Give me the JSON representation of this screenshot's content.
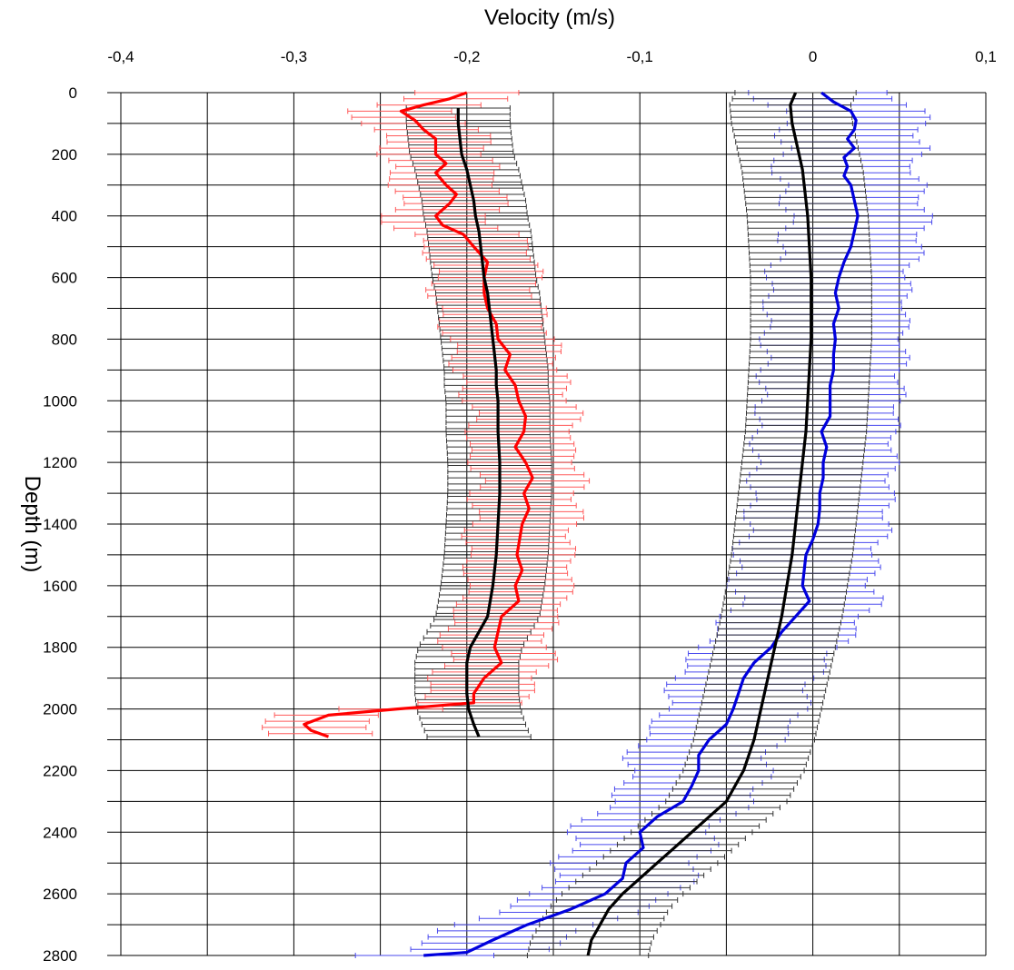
{
  "chart_data": {
    "type": "line",
    "xlabel": "Velocity (m/s)",
    "ylabel": "Depth (m)",
    "xlim": [
      -0.4,
      0.1
    ],
    "ylim": [
      0,
      2800
    ],
    "y_inverted": true,
    "x_ticks": [
      "-0,4",
      "-0,3",
      "-0,2",
      "-0,1",
      "0",
      "0,1"
    ],
    "x_tick_values": [
      -0.4,
      -0.3,
      -0.2,
      -0.1,
      0,
      0.1
    ],
    "y_ticks": [
      "0",
      "200",
      "400",
      "600",
      "800",
      "1000",
      "1200",
      "1400",
      "1600",
      "1800",
      "2000",
      "2200",
      "2400",
      "2600",
      "2800"
    ],
    "y_tick_values": [
      0,
      200,
      400,
      600,
      800,
      1000,
      1200,
      1400,
      1600,
      1800,
      2000,
      2200,
      2400,
      2600,
      2800
    ],
    "grid": true,
    "colors": {
      "red": "#ff0000",
      "red_bars": "#ff5a5a",
      "blue": "#0000dd",
      "blue_bars": "#4a4aee",
      "black": "#000000",
      "black_bars": "#333333"
    },
    "series": [
      {
        "color": "red",
        "error_halfwidth": 0.03,
        "points": [
          [
            -0.2,
            0
          ],
          [
            -0.21,
            20
          ],
          [
            -0.225,
            40
          ],
          [
            -0.238,
            60
          ],
          [
            -0.23,
            90
          ],
          [
            -0.225,
            120
          ],
          [
            -0.218,
            150
          ],
          [
            -0.218,
            200
          ],
          [
            -0.212,
            230
          ],
          [
            -0.218,
            260
          ],
          [
            -0.212,
            300
          ],
          [
            -0.206,
            330
          ],
          [
            -0.21,
            360
          ],
          [
            -0.218,
            400
          ],
          [
            -0.214,
            430
          ],
          [
            -0.202,
            460
          ],
          [
            -0.196,
            500
          ],
          [
            -0.188,
            550
          ],
          [
            -0.19,
            600
          ],
          [
            -0.19,
            650
          ],
          [
            -0.188,
            700
          ],
          [
            -0.183,
            750
          ],
          [
            -0.182,
            800
          ],
          [
            -0.175,
            850
          ],
          [
            -0.178,
            900
          ],
          [
            -0.172,
            950
          ],
          [
            -0.17,
            1000
          ],
          [
            -0.166,
            1050
          ],
          [
            -0.167,
            1100
          ],
          [
            -0.172,
            1150
          ],
          [
            -0.166,
            1200
          ],
          [
            -0.162,
            1250
          ],
          [
            -0.167,
            1300
          ],
          [
            -0.164,
            1350
          ],
          [
            -0.168,
            1400
          ],
          [
            -0.171,
            1500
          ],
          [
            -0.168,
            1550
          ],
          [
            -0.172,
            1600
          ],
          [
            -0.17,
            1650
          ],
          [
            -0.18,
            1700
          ],
          [
            -0.182,
            1750
          ],
          [
            -0.184,
            1800
          ],
          [
            -0.18,
            1850
          ],
          [
            -0.19,
            1900
          ],
          [
            -0.196,
            1950
          ],
          [
            -0.196,
            1980
          ],
          [
            -0.24,
            2000
          ],
          [
            -0.28,
            2020
          ],
          [
            -0.294,
            2050
          ],
          [
            -0.29,
            2070
          ],
          [
            -0.28,
            2090
          ]
        ]
      },
      {
        "color": "black",
        "error_halfwidth": 0.03,
        "points": [
          [
            -0.205,
            50
          ],
          [
            -0.205,
            100
          ],
          [
            -0.204,
            150
          ],
          [
            -0.203,
            200
          ],
          [
            -0.2,
            250
          ],
          [
            -0.198,
            300
          ],
          [
            -0.196,
            350
          ],
          [
            -0.195,
            400
          ],
          [
            -0.193,
            450
          ],
          [
            -0.192,
            500
          ],
          [
            -0.191,
            550
          ],
          [
            -0.19,
            600
          ],
          [
            -0.188,
            650
          ],
          [
            -0.187,
            700
          ],
          [
            -0.186,
            750
          ],
          [
            -0.185,
            800
          ],
          [
            -0.184,
            850
          ],
          [
            -0.183,
            900
          ],
          [
            -0.183,
            950
          ],
          [
            -0.182,
            1000
          ],
          [
            -0.182,
            1100
          ],
          [
            -0.181,
            1200
          ],
          [
            -0.181,
            1300
          ],
          [
            -0.182,
            1400
          ],
          [
            -0.183,
            1500
          ],
          [
            -0.185,
            1600
          ],
          [
            -0.188,
            1700
          ],
          [
            -0.193,
            1750
          ],
          [
            -0.198,
            1800
          ],
          [
            -0.2,
            1850
          ],
          [
            -0.2,
            1900
          ],
          [
            -0.2,
            1950
          ],
          [
            -0.199,
            2000
          ],
          [
            -0.196,
            2050
          ],
          [
            -0.193,
            2090
          ]
        ]
      },
      {
        "color": "blue",
        "error_halfwidth": 0.04,
        "points": [
          [
            0.005,
            0
          ],
          [
            0.012,
            30
          ],
          [
            0.022,
            60
          ],
          [
            0.025,
            90
          ],
          [
            0.024,
            120
          ],
          [
            0.02,
            150
          ],
          [
            0.024,
            180
          ],
          [
            0.018,
            210
          ],
          [
            0.02,
            240
          ],
          [
            0.018,
            270
          ],
          [
            0.022,
            300
          ],
          [
            0.024,
            350
          ],
          [
            0.026,
            400
          ],
          [
            0.024,
            450
          ],
          [
            0.022,
            500
          ],
          [
            0.018,
            550
          ],
          [
            0.015,
            600
          ],
          [
            0.013,
            650
          ],
          [
            0.015,
            700
          ],
          [
            0.012,
            750
          ],
          [
            0.013,
            800
          ],
          [
            0.012,
            850
          ],
          [
            0.012,
            900
          ],
          [
            0.01,
            950
          ],
          [
            0.01,
            1000
          ],
          [
            0.01,
            1050
          ],
          [
            0.005,
            1100
          ],
          [
            0.008,
            1150
          ],
          [
            0.006,
            1200
          ],
          [
            0.006,
            1250
          ],
          [
            0.004,
            1300
          ],
          [
            0.004,
            1350
          ],
          [
            0.003,
            1400
          ],
          [
            0.0,
            1450
          ],
          [
            -0.004,
            1500
          ],
          [
            -0.005,
            1550
          ],
          [
            -0.006,
            1600
          ],
          [
            -0.002,
            1650
          ],
          [
            -0.01,
            1700
          ],
          [
            -0.018,
            1750
          ],
          [
            -0.024,
            1800
          ],
          [
            -0.034,
            1850
          ],
          [
            -0.04,
            1900
          ],
          [
            -0.043,
            1950
          ],
          [
            -0.046,
            2000
          ],
          [
            -0.05,
            2050
          ],
          [
            -0.06,
            2100
          ],
          [
            -0.066,
            2150
          ],
          [
            -0.066,
            2200
          ],
          [
            -0.07,
            2250
          ],
          [
            -0.075,
            2300
          ],
          [
            -0.09,
            2350
          ],
          [
            -0.1,
            2400
          ],
          [
            -0.098,
            2450
          ],
          [
            -0.108,
            2500
          ],
          [
            -0.11,
            2550
          ],
          [
            -0.12,
            2600
          ],
          [
            -0.14,
            2650
          ],
          [
            -0.165,
            2700
          ],
          [
            -0.185,
            2750
          ],
          [
            -0.2,
            2790
          ],
          [
            -0.225,
            2800
          ]
        ]
      },
      {
        "color": "black",
        "error_halfwidth": 0.035,
        "points": [
          [
            -0.01,
            0
          ],
          [
            -0.013,
            40
          ],
          [
            -0.012,
            100
          ],
          [
            -0.01,
            150
          ],
          [
            -0.008,
            200
          ],
          [
            -0.006,
            250
          ],
          [
            -0.005,
            300
          ],
          [
            -0.004,
            350
          ],
          [
            -0.003,
            400
          ],
          [
            -0.002,
            500
          ],
          [
            -0.001,
            600
          ],
          [
            -0.001,
            700
          ],
          [
            -0.001,
            800
          ],
          [
            -0.002,
            900
          ],
          [
            -0.003,
            1000
          ],
          [
            -0.004,
            1100
          ],
          [
            -0.006,
            1200
          ],
          [
            -0.008,
            1300
          ],
          [
            -0.01,
            1400
          ],
          [
            -0.012,
            1500
          ],
          [
            -0.015,
            1600
          ],
          [
            -0.018,
            1700
          ],
          [
            -0.022,
            1800
          ],
          [
            -0.026,
            1900
          ],
          [
            -0.03,
            2000
          ],
          [
            -0.034,
            2100
          ],
          [
            -0.04,
            2200
          ],
          [
            -0.05,
            2300
          ],
          [
            -0.06,
            2350
          ],
          [
            -0.07,
            2400
          ],
          [
            -0.08,
            2450
          ],
          [
            -0.09,
            2500
          ],
          [
            -0.1,
            2550
          ],
          [
            -0.11,
            2600
          ],
          [
            -0.118,
            2650
          ],
          [
            -0.123,
            2700
          ],
          [
            -0.128,
            2750
          ],
          [
            -0.13,
            2800
          ]
        ]
      }
    ]
  }
}
